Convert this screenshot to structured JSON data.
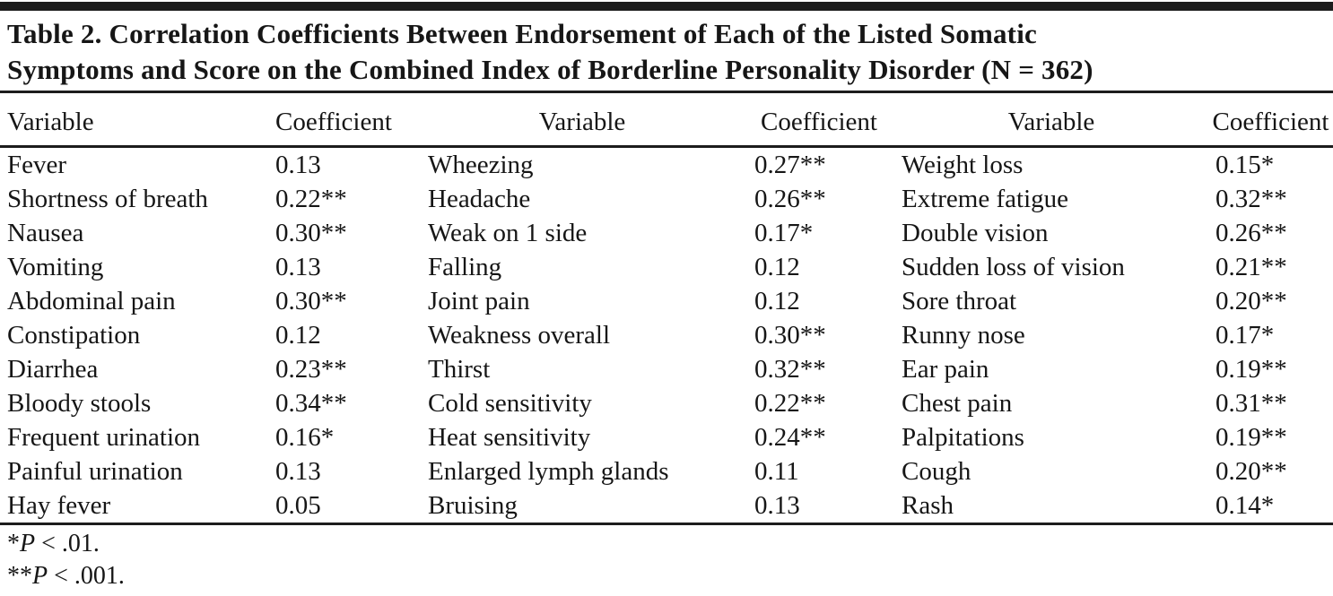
{
  "title": {
    "lines": [
      "Table 2. Correlation Coefficients Between Endorsement of Each of the Listed Somatic",
      "Symptoms and Score on the Combined Index of Borderline Personality Disorder (N = 362)"
    ]
  },
  "table": {
    "columns": [
      "Variable",
      "Coefficient",
      "Variable",
      "Coefficient",
      "Variable",
      "Coefficient"
    ],
    "rows": [
      [
        "Fever",
        "0.13",
        "Wheezing",
        "0.27**",
        "Weight loss",
        "0.15*"
      ],
      [
        "Shortness of breath",
        "0.22**",
        "Headache",
        "0.26**",
        "Extreme fatigue",
        "0.32**"
      ],
      [
        "Nausea",
        "0.30**",
        "Weak on 1 side",
        "0.17*",
        "Double vision",
        "0.26**"
      ],
      [
        "Vomiting",
        "0.13",
        "Falling",
        "0.12",
        "Sudden loss of vision",
        "0.21**"
      ],
      [
        "Abdominal pain",
        "0.30**",
        "Joint pain",
        "0.12",
        "Sore throat",
        "0.20**"
      ],
      [
        "Constipation",
        "0.12",
        "Weakness overall",
        "0.30**",
        "Runny nose",
        "0.17*"
      ],
      [
        "Diarrhea",
        "0.23**",
        "Thirst",
        "0.32**",
        "Ear pain",
        "0.19**"
      ],
      [
        "Bloody stools",
        "0.34**",
        "Cold sensitivity",
        "0.22**",
        "Chest pain",
        "0.31**"
      ],
      [
        "Frequent urination",
        "0.16*",
        "Heat sensitivity",
        "0.24**",
        "Palpitations",
        "0.19**"
      ],
      [
        "Painful urination",
        "0.13",
        "Enlarged lymph glands",
        "0.11",
        "Cough",
        "0.20**"
      ],
      [
        "Hay fever",
        "0.05",
        "Bruising",
        "0.13",
        "Rash",
        "0.14*"
      ]
    ]
  },
  "footnotes": [
    {
      "marker": "*",
      "symbol": "P",
      "rest": " < .01."
    },
    {
      "marker": "**",
      "symbol": "P",
      "rest": " < .001."
    }
  ],
  "colors": {
    "text": "#161616",
    "rule": "#1c1c1c",
    "background": "#ffffff"
  }
}
